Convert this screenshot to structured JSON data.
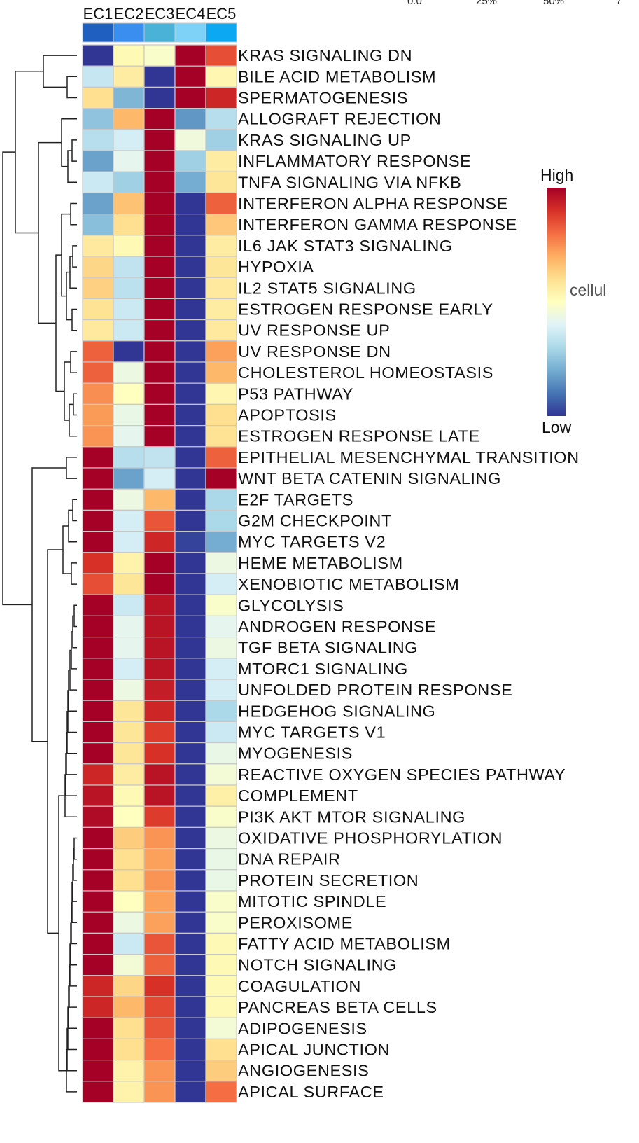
{
  "chart_data": {
    "type": "heatmap",
    "columns": [
      "EC1",
      "EC2",
      "EC3",
      "EC4",
      "EC5"
    ],
    "column_annotation_colors": [
      "#1f5fbf",
      "#3a8ef0",
      "#4ab2d6",
      "#7fd2f7",
      "#0ca9f2"
    ],
    "rows": [
      "KRAS SIGNALING DN",
      "BILE ACID METABOLISM",
      "SPERMATOGENESIS",
      "ALLOGRAFT REJECTION",
      "KRAS SIGNALING UP",
      "INFLAMMATORY RESPONSE",
      "TNFA SIGNALING VIA NFKB",
      "INTERFERON ALPHA RESPONSE",
      "INTERFERON GAMMA RESPONSE",
      "IL6 JAK STAT3 SIGNALING",
      "HYPOXIA",
      "IL2 STAT5 SIGNALING",
      "ESTROGEN RESPONSE EARLY",
      "UV RESPONSE UP",
      "UV RESPONSE DN",
      "CHOLESTEROL HOMEOSTASIS",
      "P53 PATHWAY",
      "APOPTOSIS",
      "ESTROGEN RESPONSE LATE",
      "EPITHELIAL MESENCHYMAL TRANSITION",
      "WNT BETA CATENIN SIGNALING",
      "E2F TARGETS",
      "G2M CHECKPOINT",
      "MYC TARGETS V2",
      "HEME METABOLISM",
      "XENOBIOTIC METABOLISM",
      "GLYCOLYSIS",
      "ANDROGEN RESPONSE",
      "TGF BETA SIGNALING",
      "MTORC1 SIGNALING",
      "UNFOLDED PROTEIN RESPONSE",
      "HEDGEHOG SIGNALING",
      "MYC TARGETS V1",
      "MYOGENESIS",
      "REACTIVE OXYGEN SPECIES PATHWAY",
      "COMPLEMENT",
      "PI3K AKT MTOR SIGNALING",
      "OXIDATIVE PHOSPHORYLATION",
      "DNA REPAIR",
      "PROTEIN SECRETION",
      "MITOTIC SPINDLE",
      "PEROXISOME",
      "FATTY ACID METABOLISM",
      "NOTCH SIGNALING",
      "COAGULATION",
      "PANCREAS BETA CELLS",
      "ADIPOGENESIS",
      "APICAL JUNCTION",
      "ANGIOGENESIS",
      "APICAL SURFACE"
    ],
    "values": [
      [
        0.0,
        0.52,
        0.48,
        1.0,
        0.85
      ],
      [
        0.35,
        0.56,
        0.0,
        1.0,
        0.53
      ],
      [
        0.6,
        0.22,
        0.0,
        1.0,
        0.92
      ],
      [
        0.25,
        0.68,
        1.0,
        0.16,
        0.32
      ],
      [
        0.32,
        0.38,
        1.0,
        0.45,
        0.28
      ],
      [
        0.18,
        0.42,
        1.0,
        0.28,
        0.56
      ],
      [
        0.36,
        0.28,
        1.0,
        0.2,
        0.58
      ],
      [
        0.18,
        0.66,
        1.0,
        0.0,
        0.82
      ],
      [
        0.24,
        0.6,
        1.0,
        0.0,
        0.65
      ],
      [
        0.57,
        0.52,
        1.0,
        0.0,
        0.56
      ],
      [
        0.62,
        0.34,
        1.0,
        0.0,
        0.58
      ],
      [
        0.63,
        0.33,
        1.0,
        0.0,
        0.57
      ],
      [
        0.59,
        0.36,
        1.0,
        0.0,
        0.56
      ],
      [
        0.57,
        0.36,
        1.0,
        0.0,
        0.57
      ],
      [
        0.82,
        0.0,
        1.0,
        0.0,
        0.72
      ],
      [
        0.82,
        0.44,
        1.0,
        0.0,
        0.68
      ],
      [
        0.75,
        0.5,
        1.0,
        0.0,
        0.53
      ],
      [
        0.73,
        0.43,
        1.0,
        0.0,
        0.6
      ],
      [
        0.74,
        0.42,
        1.0,
        0.0,
        0.59
      ],
      [
        1.0,
        0.32,
        0.34,
        0.0,
        0.82
      ],
      [
        1.0,
        0.18,
        0.38,
        0.0,
        1.0
      ],
      [
        1.0,
        0.44,
        0.68,
        0.0,
        0.3
      ],
      [
        1.0,
        0.38,
        0.84,
        0.0,
        0.3
      ],
      [
        1.0,
        0.38,
        0.92,
        0.02,
        0.2
      ],
      [
        0.9,
        0.54,
        1.0,
        0.0,
        0.44
      ],
      [
        0.85,
        0.58,
        1.0,
        0.0,
        0.38
      ],
      [
        1.0,
        0.36,
        0.96,
        0.0,
        0.48
      ],
      [
        1.0,
        0.42,
        0.96,
        0.0,
        0.42
      ],
      [
        1.0,
        0.42,
        0.96,
        0.0,
        0.44
      ],
      [
        1.0,
        0.38,
        0.96,
        0.0,
        0.38
      ],
      [
        1.0,
        0.44,
        0.94,
        0.0,
        0.38
      ],
      [
        1.0,
        0.58,
        0.92,
        0.0,
        0.3
      ],
      [
        1.0,
        0.58,
        0.88,
        0.0,
        0.36
      ],
      [
        1.0,
        0.58,
        0.9,
        0.0,
        0.43
      ],
      [
        0.92,
        0.56,
        0.96,
        0.0,
        0.46
      ],
      [
        0.96,
        0.52,
        0.96,
        0.0,
        0.55
      ],
      [
        0.98,
        0.5,
        0.88,
        0.0,
        0.48
      ],
      [
        1.0,
        0.64,
        0.74,
        0.0,
        0.44
      ],
      [
        1.0,
        0.6,
        0.72,
        0.0,
        0.43
      ],
      [
        1.0,
        0.6,
        0.74,
        0.0,
        0.43
      ],
      [
        1.0,
        0.5,
        0.72,
        0.0,
        0.48
      ],
      [
        1.0,
        0.44,
        0.72,
        0.0,
        0.48
      ],
      [
        1.0,
        0.36,
        0.84,
        0.0,
        0.52
      ],
      [
        1.0,
        0.46,
        0.82,
        0.0,
        0.52
      ],
      [
        0.92,
        0.62,
        0.9,
        0.0,
        0.52
      ],
      [
        0.92,
        0.68,
        0.86,
        0.0,
        0.52
      ],
      [
        1.0,
        0.6,
        0.84,
        0.0,
        0.46
      ],
      [
        1.0,
        0.6,
        0.8,
        0.0,
        0.6
      ],
      [
        1.0,
        0.54,
        0.74,
        0.0,
        0.64
      ],
      [
        1.0,
        0.54,
        0.74,
        0.0,
        0.8
      ]
    ],
    "color_scale": [
      "#313695",
      "#4575b4",
      "#74add1",
      "#abd9e9",
      "#e0f3f8",
      "#ffffbf",
      "#fee090",
      "#fdae61",
      "#f46d43",
      "#d73027",
      "#a50026"
    ],
    "legend": {
      "high_label": "High",
      "low_label": "Low",
      "title_fragment": "cellul",
      "placement": "right"
    },
    "top_text_fragments": [
      "0.0",
      "25%",
      "50%",
      "7"
    ],
    "row_dendrogram": true
  }
}
